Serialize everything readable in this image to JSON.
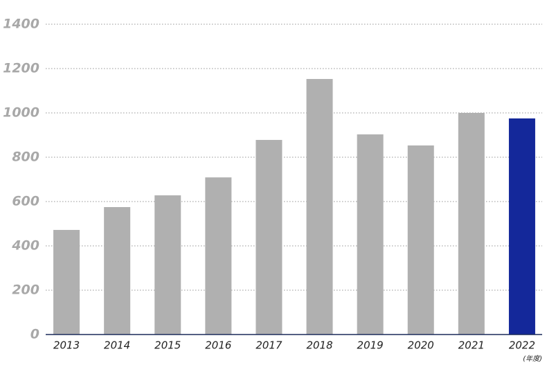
{
  "chart_data": {
    "type": "bar",
    "categories": [
      "2013",
      "2014",
      "2015",
      "2016",
      "2017",
      "2018",
      "2019",
      "2020",
      "2021",
      "2022"
    ],
    "values": [
      472,
      575,
      628,
      709,
      878,
      1153,
      903,
      853,
      1000,
      975
    ],
    "colors": [
      "#b0b0b0",
      "#b0b0b0",
      "#b0b0b0",
      "#b0b0b0",
      "#b0b0b0",
      "#b0b0b0",
      "#b0b0b0",
      "#b0b0b0",
      "#b0b0b0",
      "#14289a"
    ],
    "x_label": "(年度)",
    "ylim": [
      0,
      1400
    ],
    "yticks": [
      0,
      200,
      400,
      600,
      800,
      1000,
      1200,
      1400
    ],
    "grid": true
  }
}
